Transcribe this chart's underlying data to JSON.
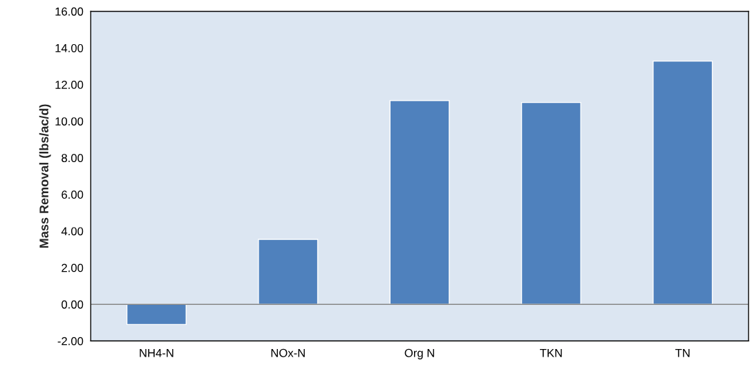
{
  "chart_data": {
    "type": "bar",
    "ylabel": "Mass Removal (lbs/ac/d)",
    "categories": [
      "NH4-N",
      "NOx-N",
      "Org N",
      "TKN",
      "TN"
    ],
    "values": [
      -1.1,
      3.55,
      11.13,
      11.02,
      13.28
    ],
    "color": "#4f81bd",
    "ylim": [
      -2,
      16
    ],
    "yticks": [
      {
        "value": -2,
        "label": "-2.00"
      },
      {
        "value": 0,
        "label": "0.00"
      },
      {
        "value": 2,
        "label": "2.00"
      },
      {
        "value": 4,
        "label": "4.00"
      },
      {
        "value": 6,
        "label": "6.00"
      },
      {
        "value": 8,
        "label": "8.00"
      },
      {
        "value": 10,
        "label": "10.00"
      },
      {
        "value": 12,
        "label": "12.00"
      },
      {
        "value": 14,
        "label": "14.00"
      },
      {
        "value": 16,
        "label": "16.00"
      }
    ],
    "ref_lines": [
      {
        "axis": "y",
        "value": 0,
        "color": "#868686"
      }
    ],
    "grid": false,
    "legend": false
  }
}
